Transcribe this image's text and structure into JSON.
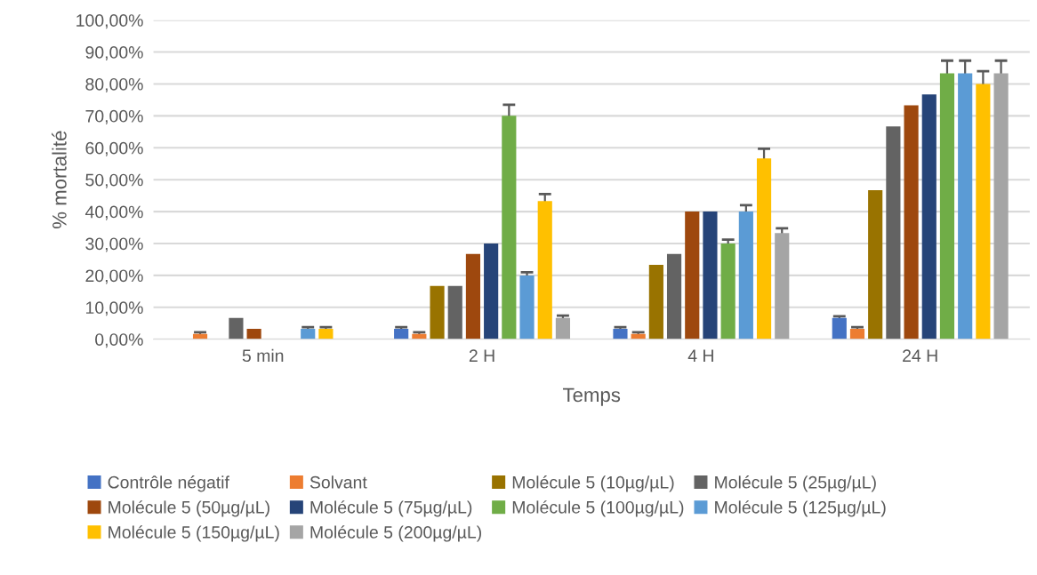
{
  "chart_data": {
    "type": "bar",
    "xlabel": "Temps",
    "ylabel": "% mortalité",
    "categories": [
      "5 min",
      "2 H",
      "4 H",
      "24 H"
    ],
    "series": [
      {
        "name": "Contrôle négatif",
        "color": "#4472c4",
        "values": [
          0,
          3.3,
          3.3,
          6.7
        ],
        "errors": [
          null,
          0.5,
          0.5,
          0.5
        ]
      },
      {
        "name": "Solvant",
        "color": "#ed7d31",
        "values": [
          1.7,
          1.7,
          1.7,
          3.3
        ],
        "errors": [
          0.5,
          0.5,
          0.5,
          0.5
        ]
      },
      {
        "name": "Molécule 5 (10µg/µL)",
        "color": "#997300",
        "values": [
          0,
          16.7,
          23.3,
          46.7
        ]
      },
      {
        "name": "Molécule 5 (25µg/µL)",
        "color": "#636363",
        "values": [
          6.7,
          16.7,
          26.7,
          66.7
        ]
      },
      {
        "name": "Molécule 5 (50µg/µL)",
        "color": "#9e480e",
        "values": [
          3.3,
          26.7,
          40,
          73.3
        ]
      },
      {
        "name": "Molécule 5 (75µg/µL)",
        "color": "#264478",
        "values": [
          0,
          30,
          40,
          76.7
        ]
      },
      {
        "name": "Molécule 5 (100µg/µL)",
        "color": "#70ad47",
        "values": [
          0,
          70,
          30,
          83.3
        ],
        "errors": [
          null,
          3.5,
          1.2,
          4
        ]
      },
      {
        "name": "Molécule 5 (125µg/µL)",
        "color": "#5b9bd5",
        "values": [
          3.3,
          20,
          40,
          83.3
        ],
        "errors": [
          0.5,
          1,
          2,
          4
        ]
      },
      {
        "name": "Molécule 5 (150µg/µL)",
        "color": "#ffc000",
        "values": [
          3.3,
          43.3,
          56.7,
          80
        ],
        "errors": [
          0.5,
          2.2,
          3,
          4
        ]
      },
      {
        "name": "Molécule 5 (200µg/µL)",
        "color": "#a5a5a5",
        "values": [
          0,
          6.7,
          33.3,
          83.3
        ],
        "errors": [
          null,
          0.7,
          1.5,
          4
        ]
      }
    ],
    "ylim": [
      0,
      100
    ],
    "yticks": [
      {
        "value": 0,
        "label": "0,00%"
      },
      {
        "value": 10,
        "label": "10,00%"
      },
      {
        "value": 20,
        "label": "20,00%"
      },
      {
        "value": 30,
        "label": "30,00%"
      },
      {
        "value": 40,
        "label": "40,00%"
      },
      {
        "value": 50,
        "label": "50,00%"
      },
      {
        "value": 60,
        "label": "60,00%"
      },
      {
        "value": 70,
        "label": "70,00%"
      },
      {
        "value": 80,
        "label": "80,00%"
      },
      {
        "value": 90,
        "label": "90,00%"
      },
      {
        "value": 100,
        "label": "100,00%"
      }
    ],
    "grid": "y",
    "legend": "bottom"
  }
}
